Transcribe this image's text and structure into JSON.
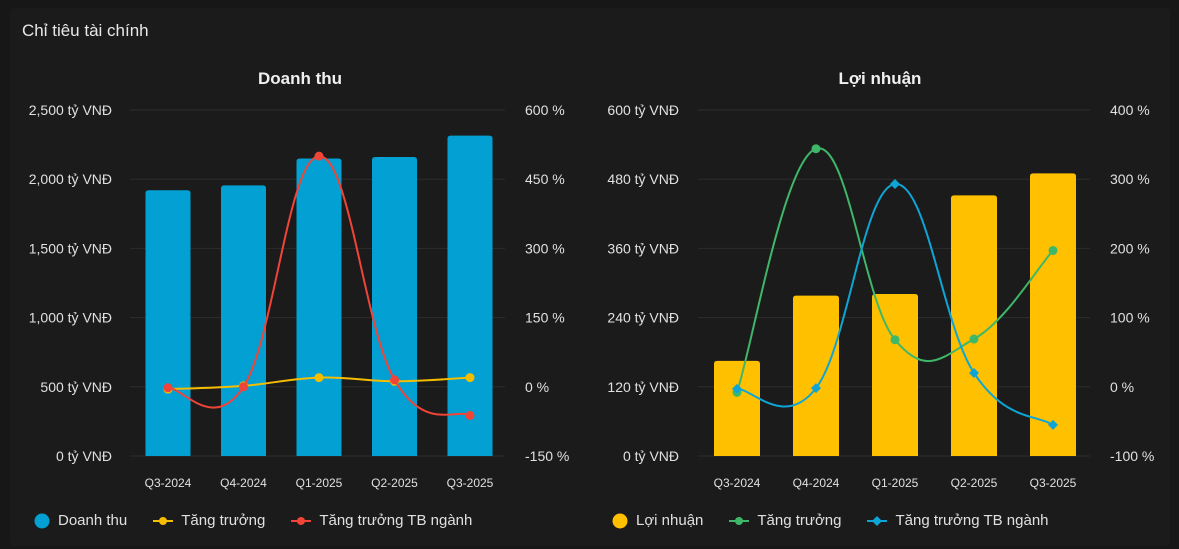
{
  "page": {
    "title": "Chỉ tiêu tài chính"
  },
  "chart_data": [
    {
      "type": "bar",
      "title": "Doanh thu",
      "categories": [
        "Q3-2024",
        "Q4-2024",
        "Q1-2025",
        "Q2-2025",
        "Q3-2025"
      ],
      "left_axis": {
        "range": [
          0,
          2500
        ],
        "tick_labels": [
          "0 tỷ VNĐ",
          "500 tỷ VNĐ",
          "1,000 tỷ VNĐ",
          "1,500 tỷ VNĐ",
          "2,000 tỷ VNĐ",
          "2,500 tỷ VNĐ"
        ]
      },
      "right_axis": {
        "range": [
          -150,
          600
        ],
        "tick_labels": [
          "-150 %",
          "0 %",
          "150 %",
          "300 %",
          "450 %",
          "600 %"
        ]
      },
      "series": [
        {
          "name": "Doanh thu",
          "kind": "bar",
          "axis": "left",
          "color": "#03a1d3",
          "values": [
            1920,
            1955,
            2150,
            2160,
            2315
          ]
        },
        {
          "name": "Tăng trưởng",
          "kind": "line",
          "axis": "right",
          "color": "#f5bd00",
          "marker": "circle",
          "values": [
            -5,
            2,
            20,
            12,
            20
          ]
        },
        {
          "name": "Tăng trưởng TB ngành",
          "kind": "line",
          "axis": "right",
          "color": "#f04438",
          "marker": "circle",
          "values": [
            -2,
            0,
            500,
            15,
            -62
          ]
        }
      ],
      "legend": {
        "position": "bottom"
      }
    },
    {
      "type": "bar",
      "title": "Lợi nhuận",
      "categories": [
        "Q3-2024",
        "Q4-2024",
        "Q1-2025",
        "Q2-2025",
        "Q3-2025"
      ],
      "left_axis": {
        "range": [
          0,
          600
        ],
        "tick_labels": [
          "0 tỷ VNĐ",
          "120 tỷ VNĐ",
          "240 tỷ VNĐ",
          "360 tỷ VNĐ",
          "480 tỷ VNĐ",
          "600 tỷ VNĐ"
        ]
      },
      "right_axis": {
        "range": [
          -100,
          400
        ],
        "tick_labels": [
          "-100 %",
          "0 %",
          "100 %",
          "200 %",
          "300 %",
          "400 %"
        ]
      },
      "series": [
        {
          "name": "Lợi nhuận",
          "kind": "bar",
          "axis": "left",
          "color": "#ffc000",
          "values": [
            165,
            278,
            281,
            452,
            490
          ]
        },
        {
          "name": "Tăng trưởng",
          "kind": "line",
          "axis": "right",
          "color": "#3fb768",
          "marker": "circle",
          "values": [
            -8,
            344,
            68,
            69,
            197
          ]
        },
        {
          "name": "Tăng trưởng TB ngành",
          "kind": "line",
          "axis": "right",
          "color": "#0ea5d6",
          "marker": "diamond",
          "values": [
            -3,
            -2,
            293,
            20,
            -55
          ]
        }
      ],
      "legend": {
        "position": "bottom"
      }
    }
  ]
}
